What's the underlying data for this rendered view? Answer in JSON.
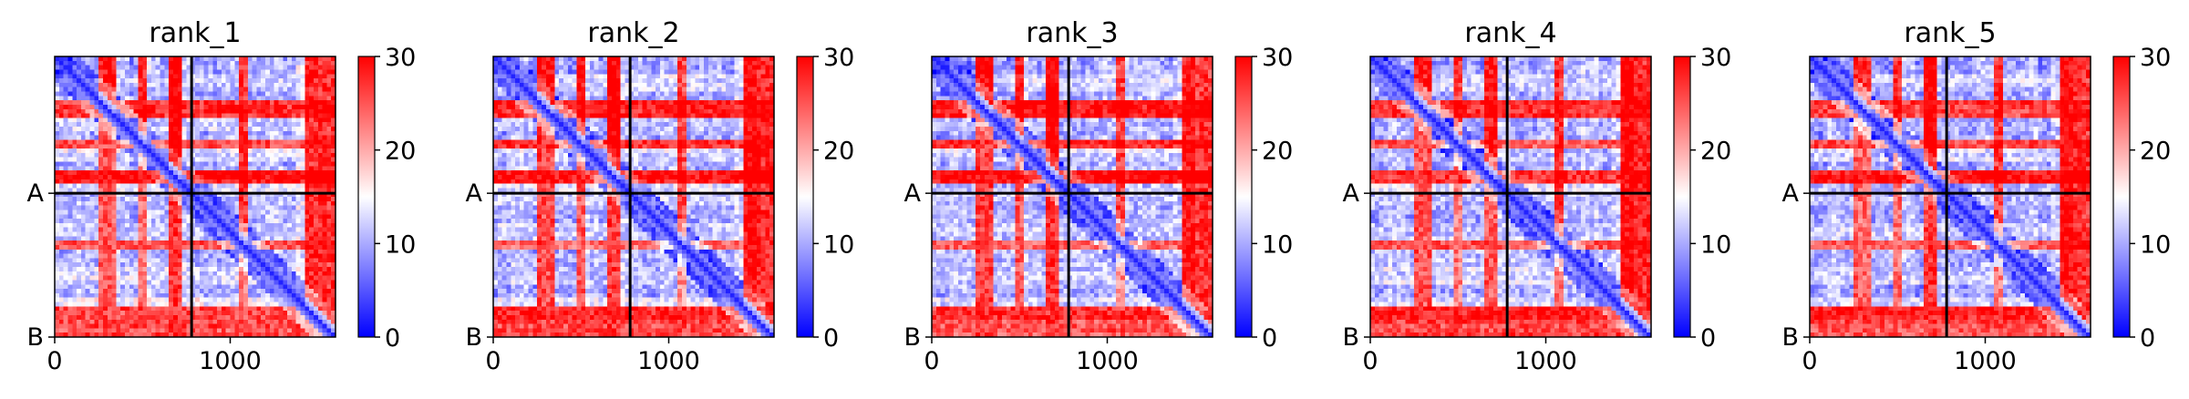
{
  "chart_data": [
    {
      "type": "heatmap",
      "title": "rank_1",
      "xticks": [
        "0",
        "1000"
      ],
      "xtick_values": [
        0,
        1000
      ],
      "xlim": [
        0,
        1600
      ],
      "ylim": [
        0,
        1600
      ],
      "yticks": [
        "A",
        "B"
      ],
      "chain_boundaries": [
        780,
        1600
      ],
      "colorbar": {
        "min": 0,
        "max": 30,
        "ticks": [
          "0",
          "10",
          "20",
          "30"
        ],
        "tick_values": [
          0,
          10,
          20,
          30
        ],
        "colors": [
          "#0000ff",
          "#ffffff",
          "#ff0000"
        ]
      }
    },
    {
      "type": "heatmap",
      "title": "rank_2",
      "xticks": [
        "0",
        "1000"
      ],
      "xtick_values": [
        0,
        1000
      ],
      "xlim": [
        0,
        1600
      ],
      "ylim": [
        0,
        1600
      ],
      "yticks": [
        "A",
        "B"
      ],
      "chain_boundaries": [
        780,
        1600
      ],
      "colorbar": {
        "min": 0,
        "max": 30,
        "ticks": [
          "0",
          "10",
          "20",
          "30"
        ],
        "tick_values": [
          0,
          10,
          20,
          30
        ],
        "colors": [
          "#0000ff",
          "#ffffff",
          "#ff0000"
        ]
      }
    },
    {
      "type": "heatmap",
      "title": "rank_3",
      "xticks": [
        "0",
        "1000"
      ],
      "xtick_values": [
        0,
        1000
      ],
      "xlim": [
        0,
        1600
      ],
      "ylim": [
        0,
        1600
      ],
      "yticks": [
        "A",
        "B"
      ],
      "chain_boundaries": [
        780,
        1600
      ],
      "colorbar": {
        "min": 0,
        "max": 30,
        "ticks": [
          "0",
          "10",
          "20",
          "30"
        ],
        "tick_values": [
          0,
          10,
          20,
          30
        ],
        "colors": [
          "#0000ff",
          "#ffffff",
          "#ff0000"
        ]
      }
    },
    {
      "type": "heatmap",
      "title": "rank_4",
      "xticks": [
        "0",
        "1000"
      ],
      "xtick_values": [
        0,
        1000
      ],
      "xlim": [
        0,
        1600
      ],
      "ylim": [
        0,
        1600
      ],
      "yticks": [
        "A",
        "B"
      ],
      "chain_boundaries": [
        780,
        1600
      ],
      "colorbar": {
        "min": 0,
        "max": 30,
        "ticks": [
          "0",
          "10",
          "20",
          "30"
        ],
        "tick_values": [
          0,
          10,
          20,
          30
        ],
        "colors": [
          "#0000ff",
          "#ffffff",
          "#ff0000"
        ]
      }
    },
    {
      "type": "heatmap",
      "title": "rank_5",
      "xticks": [
        "0",
        "1000"
      ],
      "xtick_values": [
        0,
        1000
      ],
      "xlim": [
        0,
        1600
      ],
      "ylim": [
        0,
        1600
      ],
      "yticks": [
        "A",
        "B"
      ],
      "chain_boundaries": [
        780,
        1600
      ],
      "colorbar": {
        "min": 0,
        "max": 30,
        "ticks": [
          "0",
          "10",
          "20",
          "30"
        ],
        "tick_values": [
          0,
          10,
          20,
          30
        ],
        "colors": [
          "#0000ff",
          "#ffffff",
          "#ff0000"
        ]
      }
    }
  ]
}
